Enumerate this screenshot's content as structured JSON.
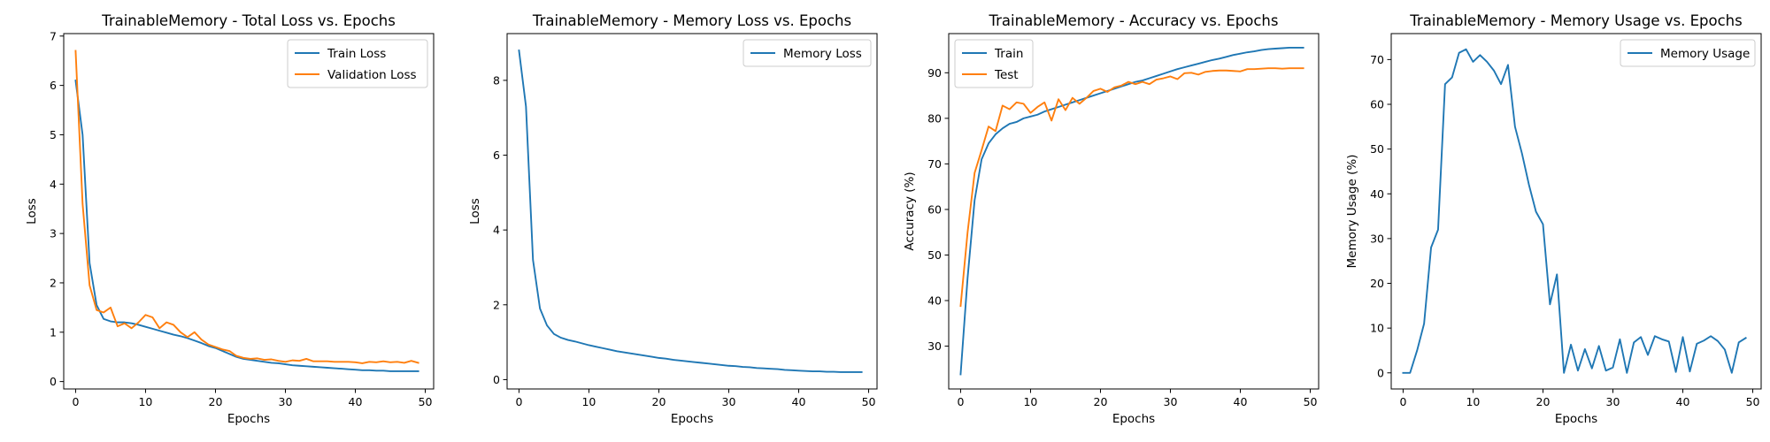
{
  "chart_data": [
    {
      "type": "line",
      "title": "TrainableMemory - Total Loss vs. Epochs",
      "xlabel": "Epochs",
      "ylabel": "Loss",
      "xlim": [
        -1.7,
        51.2
      ],
      "ylim": [
        -0.15,
        7.05
      ],
      "xticks": [
        0,
        10,
        20,
        30,
        40,
        50
      ],
      "yticks": [
        0,
        1,
        2,
        3,
        4,
        5,
        6,
        7
      ],
      "legend": "top-right",
      "series": [
        {
          "name": "Train Loss",
          "color": "#1f77b4",
          "x": [
            0,
            1,
            2,
            3,
            4,
            5,
            6,
            7,
            8,
            9,
            10,
            11,
            12,
            13,
            14,
            15,
            16,
            17,
            18,
            19,
            20,
            21,
            22,
            23,
            24,
            25,
            26,
            27,
            28,
            29,
            30,
            31,
            32,
            33,
            34,
            35,
            36,
            37,
            38,
            39,
            40,
            41,
            42,
            43,
            44,
            45,
            46,
            47,
            48,
            49
          ],
          "y": [
            6.1,
            5.0,
            2.4,
            1.55,
            1.27,
            1.22,
            1.2,
            1.2,
            1.18,
            1.15,
            1.11,
            1.07,
            1.03,
            0.99,
            0.95,
            0.92,
            0.88,
            0.83,
            0.78,
            0.72,
            0.68,
            0.62,
            0.56,
            0.5,
            0.46,
            0.44,
            0.42,
            0.4,
            0.38,
            0.37,
            0.35,
            0.33,
            0.32,
            0.31,
            0.3,
            0.29,
            0.28,
            0.27,
            0.26,
            0.25,
            0.24,
            0.23,
            0.23,
            0.22,
            0.22,
            0.21,
            0.21,
            0.21,
            0.21,
            0.21
          ]
        },
        {
          "name": "Validation Loss",
          "color": "#ff7f0e",
          "x": [
            0,
            1,
            2,
            3,
            4,
            5,
            6,
            7,
            8,
            9,
            10,
            11,
            12,
            13,
            14,
            15,
            16,
            17,
            18,
            19,
            20,
            21,
            22,
            23,
            24,
            25,
            26,
            27,
            28,
            29,
            30,
            31,
            32,
            33,
            34,
            35,
            36,
            37,
            38,
            39,
            40,
            41,
            42,
            43,
            44,
            45,
            46,
            47,
            48,
            49
          ],
          "y": [
            6.7,
            3.6,
            1.95,
            1.45,
            1.4,
            1.5,
            1.12,
            1.18,
            1.08,
            1.2,
            1.35,
            1.3,
            1.08,
            1.2,
            1.15,
            1.0,
            0.9,
            1.0,
            0.85,
            0.75,
            0.7,
            0.65,
            0.62,
            0.52,
            0.48,
            0.46,
            0.47,
            0.44,
            0.45,
            0.42,
            0.4,
            0.43,
            0.42,
            0.46,
            0.41,
            0.41,
            0.41,
            0.4,
            0.4,
            0.4,
            0.39,
            0.37,
            0.4,
            0.39,
            0.41,
            0.39,
            0.4,
            0.38,
            0.42,
            0.38
          ]
        }
      ]
    },
    {
      "type": "line",
      "title": "TrainableMemory - Memory Loss vs. Epochs",
      "xlabel": "Epochs",
      "ylabel": "Loss",
      "xlim": [
        -1.7,
        51.2
      ],
      "ylim": [
        -0.25,
        9.25
      ],
      "xticks": [
        0,
        10,
        20,
        30,
        40,
        50
      ],
      "yticks": [
        0,
        2,
        4,
        6,
        8
      ],
      "legend": "top-right",
      "series": [
        {
          "name": "Memory Loss",
          "color": "#1f77b4",
          "x": [
            0,
            1,
            2,
            3,
            4,
            5,
            6,
            7,
            8,
            9,
            10,
            11,
            12,
            13,
            14,
            15,
            16,
            17,
            18,
            19,
            20,
            21,
            22,
            23,
            24,
            25,
            26,
            27,
            28,
            29,
            30,
            31,
            32,
            33,
            34,
            35,
            36,
            37,
            38,
            39,
            40,
            41,
            42,
            43,
            44,
            45,
            46,
            47,
            48,
            49
          ],
          "y": [
            8.8,
            7.3,
            3.2,
            1.9,
            1.45,
            1.22,
            1.12,
            1.06,
            1.02,
            0.97,
            0.92,
            0.88,
            0.84,
            0.8,
            0.76,
            0.73,
            0.7,
            0.67,
            0.64,
            0.61,
            0.58,
            0.56,
            0.53,
            0.51,
            0.49,
            0.47,
            0.45,
            0.43,
            0.41,
            0.39,
            0.37,
            0.36,
            0.34,
            0.33,
            0.31,
            0.3,
            0.29,
            0.28,
            0.26,
            0.25,
            0.24,
            0.23,
            0.22,
            0.22,
            0.21,
            0.21,
            0.2,
            0.2,
            0.2,
            0.2
          ]
        }
      ]
    },
    {
      "type": "line",
      "title": "TrainableMemory - Accuracy vs. Epochs",
      "xlabel": "Epochs",
      "ylabel": "Accuracy (%)",
      "xlim": [
        -1.7,
        51.2
      ],
      "ylim": [
        20.6,
        98.6
      ],
      "xticks": [
        0,
        10,
        20,
        30,
        40,
        50
      ],
      "yticks": [
        30,
        40,
        50,
        60,
        70,
        80,
        90
      ],
      "legend": "top-left",
      "series": [
        {
          "name": "Train",
          "color": "#1f77b4",
          "x": [
            0,
            1,
            2,
            3,
            4,
            5,
            6,
            7,
            8,
            9,
            10,
            11,
            12,
            13,
            14,
            15,
            16,
            17,
            18,
            19,
            20,
            21,
            22,
            23,
            24,
            25,
            26,
            27,
            28,
            29,
            30,
            31,
            32,
            33,
            34,
            35,
            36,
            37,
            38,
            39,
            40,
            41,
            42,
            43,
            44,
            45,
            46,
            47,
            48,
            49
          ],
          "y": [
            23.8,
            45,
            62,
            71,
            74.5,
            76.5,
            77.8,
            78.8,
            79.2,
            80,
            80.4,
            80.8,
            81.5,
            82,
            82.5,
            83,
            83.5,
            84,
            84.5,
            85,
            85.5,
            86,
            86.5,
            87,
            87.5,
            88,
            88.3,
            88.8,
            89.3,
            89.8,
            90.3,
            90.8,
            91.2,
            91.6,
            92,
            92.4,
            92.8,
            93.1,
            93.5,
            93.9,
            94.2,
            94.5,
            94.7,
            95,
            95.2,
            95.3,
            95.4,
            95.5,
            95.5,
            95.5
          ]
        },
        {
          "name": "Test",
          "color": "#ff7f0e",
          "x": [
            0,
            1,
            2,
            3,
            4,
            5,
            6,
            7,
            8,
            9,
            10,
            11,
            12,
            13,
            14,
            15,
            16,
            17,
            18,
            19,
            20,
            21,
            22,
            23,
            24,
            25,
            26,
            27,
            28,
            29,
            30,
            31,
            32,
            33,
            34,
            35,
            36,
            37,
            38,
            39,
            40,
            41,
            42,
            43,
            44,
            45,
            46,
            47,
            48,
            49
          ],
          "y": [
            38.8,
            55,
            68,
            73,
            78.2,
            77.2,
            82.8,
            82,
            83.5,
            83.2,
            81.2,
            82.5,
            83.5,
            79.5,
            84.2,
            81.8,
            84.5,
            83.2,
            84.5,
            86,
            86.5,
            85.8,
            86.8,
            87.2,
            88,
            87.5,
            88,
            87.5,
            88.5,
            88.8,
            89.2,
            88.6,
            89.9,
            90,
            89.6,
            90.2,
            90.4,
            90.5,
            90.5,
            90.4,
            90.3,
            90.8,
            90.8,
            90.9,
            91,
            91,
            90.9,
            91,
            91,
            91
          ]
        }
      ]
    },
    {
      "type": "line",
      "title": "TrainableMemory - Memory Usage vs. Epochs",
      "xlabel": "Epochs",
      "ylabel": "Memory Usage (%)",
      "xlim": [
        -1.7,
        51.2
      ],
      "ylim": [
        -3.6,
        75.8
      ],
      "xticks": [
        0,
        10,
        20,
        30,
        40,
        50
      ],
      "yticks": [
        0,
        10,
        20,
        30,
        40,
        50,
        60,
        70
      ],
      "legend": "top-right",
      "series": [
        {
          "name": "Memory Usage",
          "color": "#1f77b4",
          "x": [
            0,
            1,
            2,
            3,
            4,
            5,
            6,
            7,
            8,
            9,
            10,
            11,
            12,
            13,
            14,
            15,
            16,
            17,
            18,
            19,
            20,
            21,
            22,
            23,
            24,
            25,
            26,
            27,
            28,
            29,
            30,
            31,
            32,
            33,
            34,
            35,
            36,
            37,
            38,
            39,
            40,
            41,
            42,
            43,
            44,
            45,
            46,
            47,
            48,
            49
          ],
          "y": [
            0,
            0,
            5,
            11,
            28,
            32,
            64.5,
            66,
            71.5,
            72.3,
            69.5,
            71,
            69.5,
            67.5,
            64.5,
            68.8,
            55,
            49,
            42,
            36,
            33.2,
            15.3,
            22,
            0,
            6.3,
            0.5,
            5.3,
            1,
            6,
            0.5,
            1.2,
            7.5,
            0,
            6.8,
            8,
            4,
            8.2,
            7.5,
            7,
            0.2,
            8,
            0.3,
            6.5,
            7.2,
            8.2,
            7.1,
            5.2,
            0,
            6.8,
            7.8
          ]
        }
      ]
    }
  ]
}
